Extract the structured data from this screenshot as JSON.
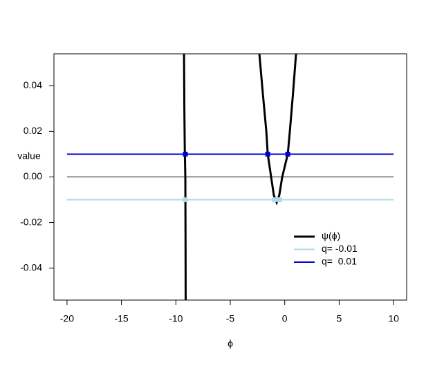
{
  "chart_data": {
    "type": "line",
    "xlabel": "ϕ",
    "ylabel": "value",
    "xlim": [
      -21.2,
      11.2
    ],
    "ylim": [
      -0.054,
      0.054
    ],
    "xticks": [
      -20,
      -15,
      -10,
      -5,
      0,
      5,
      10
    ],
    "yticks": [
      -0.04,
      -0.02,
      {
        "value": 0,
        "label": "0.00"
      },
      0.02,
      0.04
    ],
    "legend": "bottom-right",
    "series": [
      {
        "name": "ψ(ϕ)",
        "color": "#000000",
        "width": 3,
        "x": [
          -9.25,
          -9.22,
          -9.18,
          -9.13,
          -9.11,
          -9.1,
          null,
          -2.33,
          -2.0,
          -1.69,
          -1.56,
          -1.25,
          -1.0,
          -0.74,
          -0.5,
          -0.23,
          0.28,
          0.47,
          0.75,
          1.04
        ],
        "values": [
          0.054,
          0.03,
          0.012,
          0.0,
          -0.03,
          -0.054,
          null,
          0.054,
          0.036,
          0.02,
          0.01,
          0.0,
          -0.008,
          -0.0112,
          -0.008,
          0.0,
          0.01,
          0.02,
          0.036,
          0.054
        ]
      },
      {
        "name": "q= -0.01",
        "color": "#add8e6",
        "width": 2,
        "x": [
          -20,
          10
        ],
        "values": [
          -0.01,
          -0.01
        ]
      },
      {
        "name": "q=  0.01",
        "color": "#0000cd",
        "width": 2,
        "x": [
          -20,
          10
        ],
        "values": [
          0.01,
          0.01
        ]
      }
    ],
    "reference_lines": [
      {
        "color": "#000000",
        "x": [
          -20,
          10
        ],
        "values": [
          0,
          0
        ]
      }
    ],
    "points": [
      {
        "color": "#0000cd",
        "x": [
          -9.13,
          -1.56,
          0.28
        ],
        "values": [
          0.01,
          0.01,
          0.01
        ]
      },
      {
        "color": "#add8e6",
        "x": [
          -9.13,
          -0.93,
          -0.48
        ],
        "values": [
          -0.01,
          -0.01,
          -0.01
        ]
      }
    ]
  }
}
